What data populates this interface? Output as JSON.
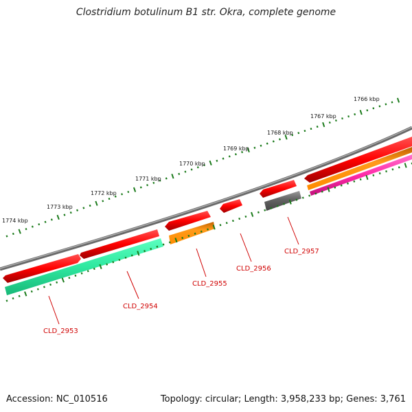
{
  "title": "Clostridium botulinum B1 str. Okra, complete genome",
  "footer": {
    "accession": "Accession: NC_010516",
    "summary": "Topology: circular; Length: 3,958,233 bp; Genes: 3,761"
  },
  "scale": {
    "unit": "kbp",
    "labels": [
      {
        "kbp": 1766,
        "text": "1766 kbp"
      },
      {
        "kbp": 1767,
        "text": "1767 kbp"
      },
      {
        "kbp": 1768,
        "text": "1768 kbp"
      },
      {
        "kbp": 1769,
        "text": "1769 kbp"
      },
      {
        "kbp": 1770,
        "text": "1770 kbp"
      },
      {
        "kbp": 1771,
        "text": "1771 kbp"
      },
      {
        "kbp": 1772,
        "text": "1772 kbp"
      },
      {
        "kbp": 1773,
        "text": "1773 kbp"
      },
      {
        "kbp": 1774,
        "text": "1774 kbp"
      }
    ]
  },
  "colors": {
    "backbone": "#7a7a7a",
    "cds": "#ff0000",
    "cog_orange": "#ff8c00",
    "cog_green": "#2ee8a0",
    "cog_gray": "#666666",
    "cog_magenta": "#ff2aa8",
    "tick": "#1a7a1a",
    "label": "#d00000"
  },
  "genes": [
    {
      "label": "CLD_2953",
      "cog": "cog_green"
    },
    {
      "label": "CLD_2954",
      "cog": "cog_green"
    },
    {
      "label": "CLD_2955",
      "cog": "cog_orange"
    },
    {
      "label": "CLD_2956",
      "cog": ""
    },
    {
      "label": "CLD_2957",
      "cog": "cog_gray"
    }
  ]
}
